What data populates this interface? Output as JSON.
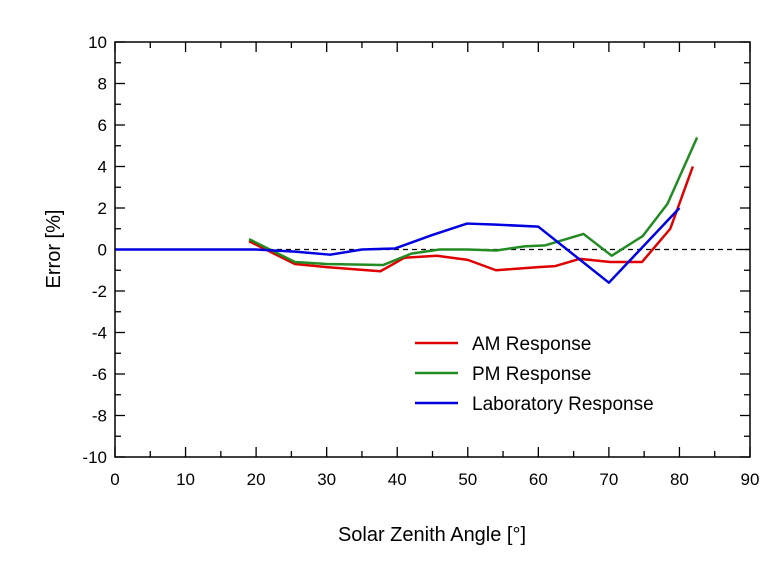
{
  "chart_data": {
    "type": "line",
    "title": "",
    "xlabel": "Solar Zenith Angle [°]",
    "ylabel": "Error [%]",
    "xlim": [
      0,
      90
    ],
    "ylim": [
      -10,
      10
    ],
    "xticks": [
      0,
      10,
      20,
      30,
      40,
      50,
      60,
      70,
      80,
      90
    ],
    "yticks": [
      -10,
      -8,
      -6,
      -4,
      -2,
      0,
      2,
      4,
      6,
      8,
      10
    ],
    "grid": false,
    "reference_line": {
      "y": 0,
      "style": "dashed"
    },
    "legend_position": "lower-right",
    "series": [
      {
        "name": "AM Response",
        "color": "#e00000",
        "x": [
          19,
          25.5,
          30,
          37.6,
          41,
          45.6,
          50,
          54,
          60,
          62.4,
          65.9,
          70.2,
          74.7,
          78.7,
          81.9
        ],
        "y": [
          0.4,
          -0.7,
          -0.85,
          -1.05,
          -0.4,
          -0.3,
          -0.5,
          -1.0,
          -0.85,
          -0.8,
          -0.45,
          -0.6,
          -0.6,
          1.0,
          4.0
        ]
      },
      {
        "name": "PM Response",
        "color": "#228b22",
        "x": [
          19,
          25.5,
          30,
          38,
          42,
          46,
          50,
          54,
          58,
          61,
          66.4,
          70.4,
          74.8,
          78.3,
          82.5
        ],
        "y": [
          0.5,
          -0.6,
          -0.7,
          -0.75,
          -0.2,
          0,
          0,
          -0.05,
          0.15,
          0.2,
          0.75,
          -0.3,
          0.65,
          2.2,
          5.4
        ]
      },
      {
        "name": "Laboratory Response",
        "color": "#0000e0",
        "x": [
          0,
          20,
          25.5,
          30.5,
          35,
          39.7,
          45,
          49.9,
          54,
          60,
          70,
          80
        ],
        "y": [
          0,
          0,
          -0.1,
          -0.25,
          0,
          0.05,
          0.7,
          1.25,
          1.2,
          1.1,
          -1.6,
          2.0
        ]
      }
    ]
  }
}
